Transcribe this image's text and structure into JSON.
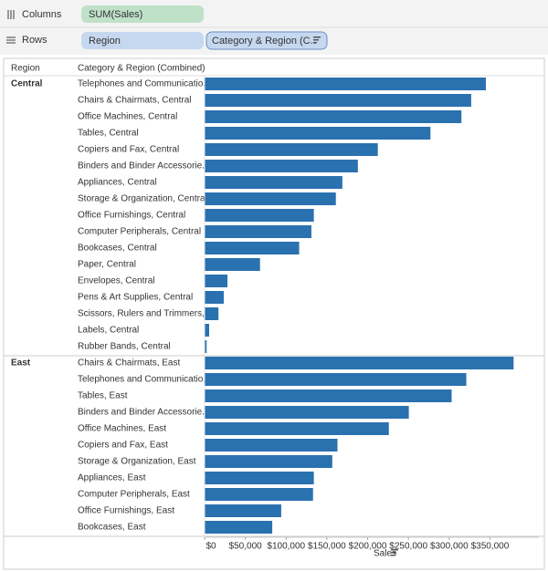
{
  "shelves": {
    "columns": {
      "label": "Columns",
      "pills": [
        "SUM(Sales)"
      ]
    },
    "rows": {
      "label": "Rows",
      "pills": [
        "Region",
        "Category & Region (C.."
      ]
    }
  },
  "chart_data": {
    "type": "bar",
    "orientation": "horizontal",
    "row_headers": [
      "Region",
      "Category & Region (Combined)"
    ],
    "x_label": "Sales",
    "color": "#2a71b0",
    "xlim": [
      0,
      410000
    ],
    "xticks": [
      {
        "value": 0,
        "label": "$0"
      },
      {
        "value": 50000,
        "label": "$50,000"
      },
      {
        "value": 100000,
        "label": "$100,000"
      },
      {
        "value": 150000,
        "label": "$150,000"
      },
      {
        "value": 200000,
        "label": "$200,000"
      },
      {
        "value": 250000,
        "label": "$250,000"
      },
      {
        "value": 300000,
        "label": "$300,000"
      },
      {
        "value": 350000,
        "label": "$350,000"
      }
    ],
    "panes": [
      {
        "name": "Central",
        "categories": [
          "Telephones and Communicatio..",
          "Chairs & Chairmats, Central",
          "Office Machines, Central",
          "Tables, Central",
          "Copiers and Fax, Central",
          "Binders and Binder Accessorie..",
          "Appliances, Central",
          "Storage & Organization, Central",
          "Office Furnishings, Central",
          "Computer Peripherals, Central",
          "Bookcases, Central",
          "Paper, Central",
          "Envelopes, Central",
          "Pens & Art Supplies, Central",
          "Scissors, Rulers and Trimmers,..",
          "Labels, Central",
          "Rubber Bands, Central"
        ],
        "values": [
          345000,
          327000,
          315000,
          277000,
          212500,
          188000,
          169000,
          161000,
          134000,
          131000,
          116000,
          68000,
          28000,
          23500,
          17000,
          5600,
          2500
        ]
      },
      {
        "name": "East",
        "categories": [
          "Chairs & Chairmats, East",
          "Telephones and Communicatio..",
          "Tables, East",
          "Binders and Binder Accessorie..",
          "Office Machines, East",
          "Copiers and Fax, East",
          "Storage & Organization, East",
          "Appliances, East",
          "Computer Peripherals, East",
          "Office Furnishings, East",
          "Bookcases, East"
        ],
        "values": [
          379000,
          321000,
          303000,
          250500,
          226000,
          163000,
          156600,
          134000,
          133000,
          94000,
          83000
        ]
      }
    ]
  }
}
